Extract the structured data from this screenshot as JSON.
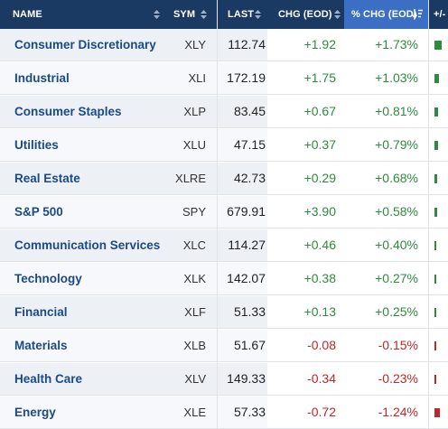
{
  "header": {
    "name": "NAME",
    "sym": "SYM",
    "last": "LAST",
    "chg": "CHG (EOD)",
    "pchg": "% CHG (EOD)",
    "bar": "+/-"
  },
  "sort": {
    "active_column": "pchg",
    "direction": "descending"
  },
  "colors": {
    "positive": "#2e8b3e",
    "negative": "#c0262a",
    "header_bg": "#1b3a63",
    "active_header_bg": "#3a6fc3"
  },
  "rows": [
    {
      "name": "Consumer Discretionary",
      "sym": "XLY",
      "last": "112.74",
      "chg": "+1.92",
      "pchg": "+1.73%",
      "pct": 1.73
    },
    {
      "name": "Industrial",
      "sym": "XLI",
      "last": "172.19",
      "chg": "+1.75",
      "pchg": "+1.03%",
      "pct": 1.03
    },
    {
      "name": "Consumer Staples",
      "sym": "XLP",
      "last": "83.45",
      "chg": "+0.67",
      "pchg": "+0.81%",
      "pct": 0.81
    },
    {
      "name": "Utilities",
      "sym": "XLU",
      "last": "47.15",
      "chg": "+0.37",
      "pchg": "+0.79%",
      "pct": 0.79
    },
    {
      "name": "Real Estate",
      "sym": "XLRE",
      "last": "42.73",
      "chg": "+0.29",
      "pchg": "+0.68%",
      "pct": 0.68
    },
    {
      "name": "S&P 500",
      "sym": "SPY",
      "last": "679.91",
      "chg": "+3.90",
      "pchg": "+0.58%",
      "pct": 0.58
    },
    {
      "name": "Communication Services",
      "sym": "XLC",
      "last": "114.27",
      "chg": "+0.46",
      "pchg": "+0.40%",
      "pct": 0.4
    },
    {
      "name": "Technology",
      "sym": "XLK",
      "last": "142.07",
      "chg": "+0.38",
      "pchg": "+0.27%",
      "pct": 0.27
    },
    {
      "name": "Financial",
      "sym": "XLF",
      "last": "51.33",
      "chg": "+0.13",
      "pchg": "+0.25%",
      "pct": 0.25
    },
    {
      "name": "Materials",
      "sym": "XLB",
      "last": "51.67",
      "chg": "-0.08",
      "pchg": "-0.15%",
      "pct": -0.15
    },
    {
      "name": "Health Care",
      "sym": "XLV",
      "last": "149.33",
      "chg": "-0.34",
      "pchg": "-0.23%",
      "pct": -0.23
    },
    {
      "name": "Energy",
      "sym": "XLE",
      "last": "57.33",
      "chg": "-0.72",
      "pchg": "-1.24%",
      "pct": -1.24
    }
  ]
}
